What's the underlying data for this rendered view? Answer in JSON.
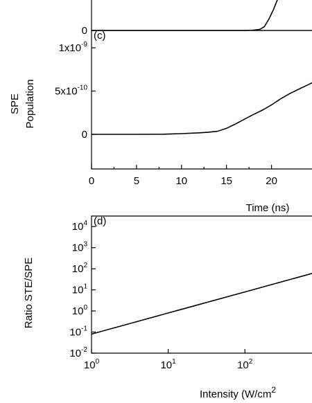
{
  "chart_data": [
    {
      "type": "line",
      "ylim": [
        0,
        1
      ],
      "yticks": [
        0
      ],
      "xlim": [
        0,
        24.5
      ],
      "series": [
        {
          "color": "#000000",
          "x": [
            0,
            10,
            17,
            18,
            18.7,
            19.2,
            19.7,
            20.2,
            20.7,
            21
          ],
          "values": [
            0,
            0,
            0,
            0.01,
            0.03,
            0.1,
            0.3,
            0.55,
            0.85,
            1.0
          ]
        }
      ]
    },
    {
      "type": "line",
      "panel_label": "(c)",
      "ylabel_lines": [
        "SPE",
        "Population"
      ],
      "xlabel": "Time (ns)",
      "xlim": [
        0,
        24.5
      ],
      "xticks": [
        0,
        5,
        10,
        15,
        20
      ],
      "ylim": [
        -4e-10,
        1.2e-09
      ],
      "yticks": [
        0,
        {
          "value": 5e-10,
          "label": "5x10",
          "exponent": "-10"
        },
        {
          "value": 1e-09,
          "label": "1x10",
          "exponent": "-9"
        }
      ],
      "series": [
        {
          "color": "#000000",
          "x": [
            0,
            5,
            8,
            10,
            12,
            13,
            14,
            15,
            16,
            17,
            18,
            19,
            20,
            21,
            22,
            23,
            24,
            24.5
          ],
          "values": [
            0,
            0,
            2e-12,
            8e-12,
            1.8e-11,
            2.5e-11,
            3.5e-11,
            7e-11,
            1.2e-10,
            1.75e-10,
            2.3e-10,
            2.8e-10,
            3.4e-10,
            4.1e-10,
            4.7e-10,
            5.2e-10,
            5.7e-10,
            5.95e-10
          ]
        }
      ]
    },
    {
      "type": "line",
      "panel_label": "(d)",
      "ylabel": "Ratio STE/SPE",
      "xlabel": "Intensity (W/cm",
      "xlabel_sup": "2",
      "log_x": true,
      "log_y": true,
      "xlim": [
        1,
        750
      ],
      "xticks": [
        {
          "value": 1,
          "label": "10",
          "exponent": "0"
        },
        {
          "value": 10,
          "label": "10",
          "exponent": "1"
        },
        {
          "value": 100,
          "label": "10",
          "exponent": "2"
        }
      ],
      "ylim": [
        0.01,
        31623
      ],
      "yticks": [
        {
          "value": 0.01,
          "label": "10",
          "exponent": "-2"
        },
        {
          "value": 0.1,
          "label": "10",
          "exponent": "-1"
        },
        {
          "value": 1,
          "label": "10",
          "exponent": "0"
        },
        {
          "value": 10,
          "label": "10",
          "exponent": "1"
        },
        {
          "value": 100,
          "label": "10",
          "exponent": "2"
        },
        {
          "value": 1000,
          "label": "10",
          "exponent": "3"
        },
        {
          "value": 10000,
          "label": "10",
          "exponent": "4"
        }
      ],
      "series": [
        {
          "color": "#000000",
          "x": [
            1,
            10,
            100,
            750
          ],
          "values": [
            0.08,
            0.8,
            8,
            60
          ]
        }
      ]
    }
  ]
}
